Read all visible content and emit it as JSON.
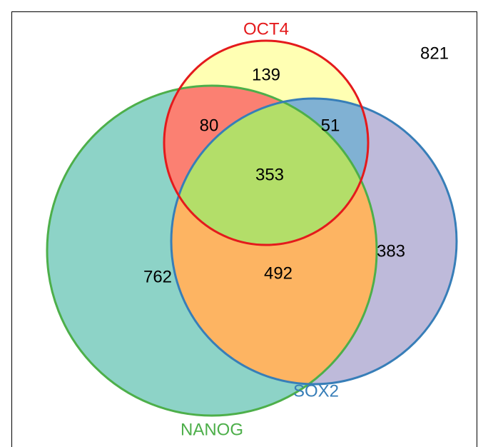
{
  "sets": [
    {
      "name": "OCT4"
    },
    {
      "name": "NANOG"
    },
    {
      "name": "SOX2"
    }
  ],
  "regions": [
    {
      "sets": "OCT4",
      "count": 139
    },
    {
      "sets": "OCT4 NANOG",
      "count": 80
    },
    {
      "sets": "OCT4 SOX2",
      "count": 51
    },
    {
      "sets": "OCT4 NANOG SOX2",
      "count": 353
    },
    {
      "sets": "NANOG",
      "count": 762
    },
    {
      "sets": "NANOG SOX2",
      "count": 492
    },
    {
      "sets": "SOX2",
      "count": 383
    }
  ],
  "outside": 821
}
